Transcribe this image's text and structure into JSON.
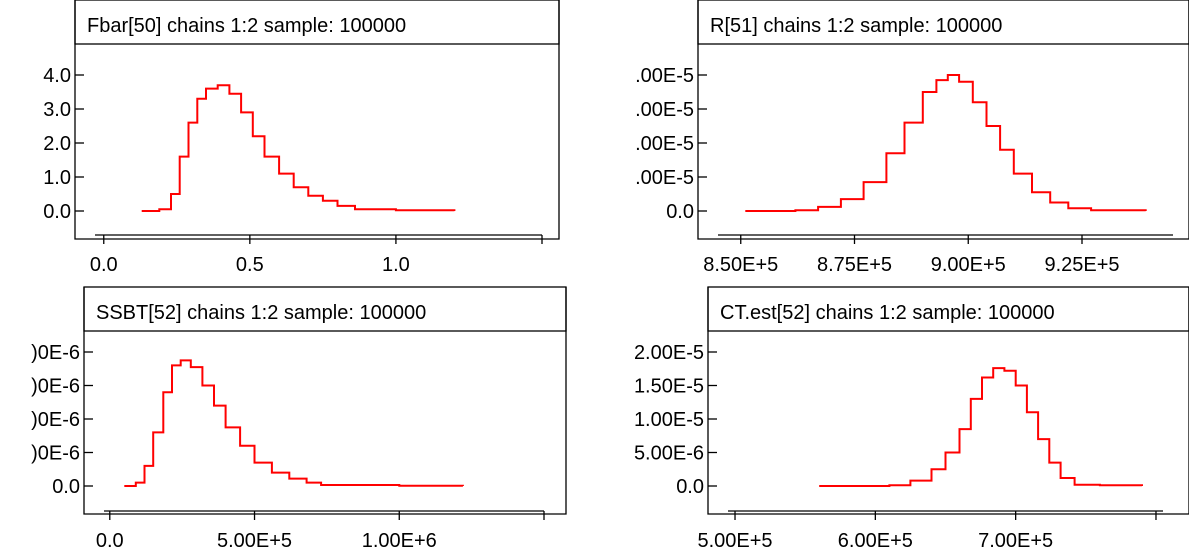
{
  "chart_data": [
    {
      "type": "line",
      "title": "Fbar[50] chains 1:2 sample: 100000",
      "xlim": [
        -0.03,
        1.5
      ],
      "ylim": [
        0,
        4.0
      ],
      "x_ticks": [
        {
          "value": 0.0,
          "label": "0.0"
        },
        {
          "value": 0.5,
          "label": "0.5"
        },
        {
          "value": 1.0,
          "label": "1.0"
        },
        {
          "value": 1.5,
          "label": ""
        }
      ],
      "y_ticks": [
        {
          "value": 0.0,
          "label": "0.0"
        },
        {
          "value": 1.0,
          "label": "1.0"
        },
        {
          "value": 2.0,
          "label": "2.0"
        },
        {
          "value": 3.0,
          "label": "3.0"
        },
        {
          "value": 4.0,
          "label": "4.0"
        }
      ],
      "x": [
        0.13,
        0.19,
        0.23,
        0.26,
        0.29,
        0.32,
        0.35,
        0.39,
        0.43,
        0.47,
        0.51,
        0.55,
        0.6,
        0.65,
        0.7,
        0.75,
        0.8,
        0.86,
        1.0,
        1.2
      ],
      "y": [
        0.0,
        0.05,
        0.5,
        1.6,
        2.6,
        3.3,
        3.6,
        3.7,
        3.45,
        2.9,
        2.2,
        1.6,
        1.1,
        0.7,
        0.45,
        0.3,
        0.15,
        0.05,
        0.02,
        0.0
      ]
    },
    {
      "type": "line",
      "title": "R[51] chains 1:2 sample: 100000",
      "xlim": [
        845000,
        945000
      ],
      "ylim": [
        0,
        4.0
      ],
      "x_ticks": [
        {
          "value": 850000,
          "label": "8.50E+5"
        },
        {
          "value": 875000,
          "label": "8.75E+5"
        },
        {
          "value": 900000,
          "label": "9.00E+5"
        },
        {
          "value": 925000,
          "label": "9.25E+5"
        },
        {
          "value": 950000,
          "label": ""
        }
      ],
      "y_ticks": [
        {
          "value": 0.0,
          "label": "0.0"
        },
        {
          "value": 1.0,
          "label": ".00E-5"
        },
        {
          "value": 2.0,
          "label": ".00E-5"
        },
        {
          "value": 3.0,
          "label": ".00E-5"
        },
        {
          "value": 4.0,
          "label": ".00E-5"
        }
      ],
      "x": [
        851000,
        862000,
        867000,
        872000,
        877000,
        882000,
        886000,
        890000,
        893000,
        895500,
        898000,
        901000,
        904000,
        907000,
        910000,
        914000,
        918000,
        922000,
        927000,
        939000
      ],
      "y": [
        0.0,
        0.02,
        0.12,
        0.35,
        0.85,
        1.7,
        2.6,
        3.5,
        3.85,
        4.0,
        3.8,
        3.2,
        2.5,
        1.8,
        1.1,
        0.55,
        0.25,
        0.08,
        0.02,
        0.0
      ]
    },
    {
      "type": "line",
      "title": "SSBT[52] chains 1:2 sample: 100000",
      "xlim": [
        -20000,
        1500000
      ],
      "ylim": [
        0,
        4.0
      ],
      "x_ticks": [
        {
          "value": 0,
          "label": "0.0"
        },
        {
          "value": 500000,
          "label": "5.00E+5"
        },
        {
          "value": 1000000,
          "label": "1.00E+6"
        },
        {
          "value": 1500000,
          "label": ""
        }
      ],
      "y_ticks": [
        {
          "value": 0.0,
          "label": "0.0"
        },
        {
          "value": 1.0,
          "label": ")0E-6"
        },
        {
          "value": 2.0,
          "label": ")0E-6"
        },
        {
          "value": 3.0,
          "label": ")0E-6"
        },
        {
          "value": 4.0,
          "label": ")0E-6"
        }
      ],
      "x": [
        50000,
        90000,
        120000,
        150000,
        185000,
        215000,
        245000,
        280000,
        320000,
        360000,
        400000,
        450000,
        500000,
        560000,
        620000,
        680000,
        730000,
        1000000,
        1220000
      ],
      "y": [
        0.0,
        0.1,
        0.6,
        1.6,
        2.8,
        3.6,
        3.75,
        3.55,
        3.0,
        2.4,
        1.75,
        1.2,
        0.7,
        0.4,
        0.22,
        0.1,
        0.03,
        0.01,
        0.0
      ]
    },
    {
      "type": "line",
      "title": "CT.est[52] chains 1:2 sample: 100000",
      "xlim": [
        495000,
        805000
      ],
      "ylim": [
        0,
        2.0
      ],
      "x_ticks": [
        {
          "value": 500000,
          "label": "5.00E+5"
        },
        {
          "value": 600000,
          "label": "6.00E+5"
        },
        {
          "value": 700000,
          "label": "7.00E+5"
        },
        {
          "value": 800000,
          "label": ""
        }
      ],
      "y_ticks": [
        {
          "value": 0.0,
          "label": "0.0"
        },
        {
          "value": 0.5,
          "label": "5.00E-6"
        },
        {
          "value": 1.0,
          "label": "1.00E-5"
        },
        {
          "value": 1.5,
          "label": "1.50E-5"
        },
        {
          "value": 2.0,
          "label": "2.00E-5"
        }
      ],
      "x": [
        560000,
        610000,
        625000,
        640000,
        650000,
        660000,
        668000,
        676000,
        684000,
        692000,
        700000,
        708000,
        716000,
        724000,
        732000,
        742000,
        760000,
        790000
      ],
      "y": [
        0.0,
        0.01,
        0.08,
        0.25,
        0.5,
        0.85,
        1.3,
        1.62,
        1.76,
        1.72,
        1.5,
        1.1,
        0.7,
        0.35,
        0.12,
        0.02,
        0.01,
        0.0
      ]
    }
  ]
}
